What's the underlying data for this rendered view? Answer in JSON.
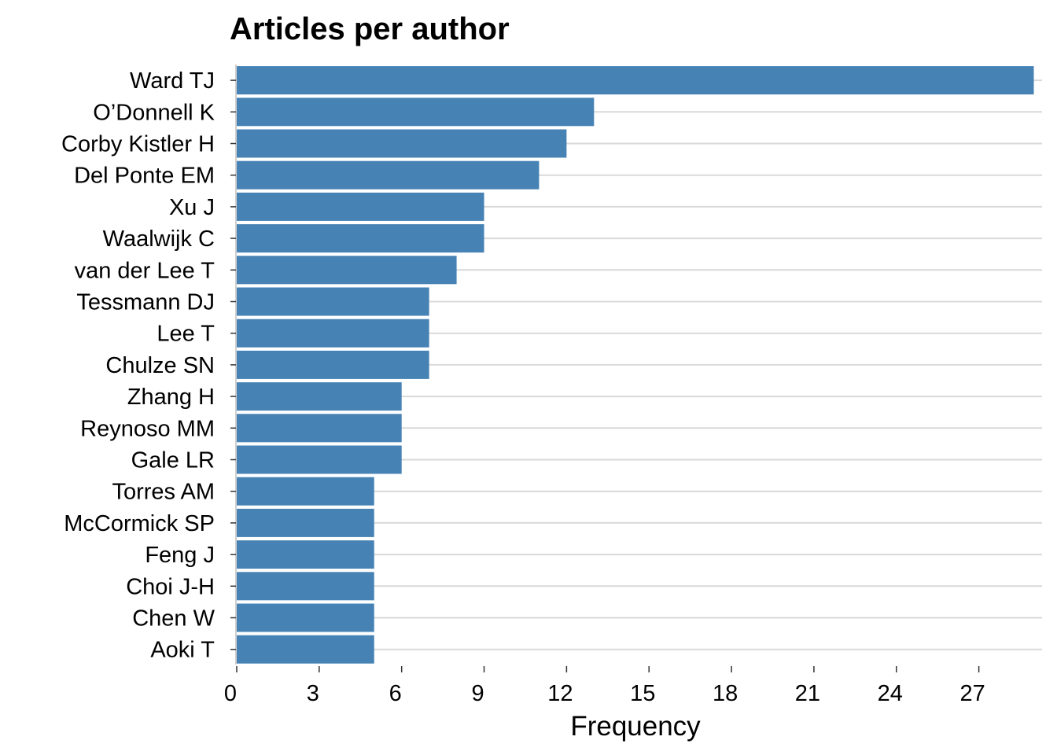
{
  "chart_data": {
    "type": "bar",
    "orientation": "horizontal",
    "title": "Articles per author",
    "xlabel": "Frequency",
    "ylabel": "",
    "categories": [
      "Ward TJ",
      "O’Donnell K",
      "Corby Kistler H",
      "Del Ponte EM",
      "Xu J",
      "Waalwijk C",
      "van der Lee T",
      "Tessmann DJ",
      "Lee T",
      "Chulze SN",
      "Zhang H",
      "Reynoso MM",
      "Gale LR",
      "Torres AM",
      "McCormick SP",
      "Feng J",
      "Choi J-H",
      "Chen W",
      "Aoki T"
    ],
    "values": [
      29,
      13,
      12,
      11,
      9,
      9,
      8,
      7,
      7,
      7,
      6,
      6,
      6,
      5,
      5,
      5,
      5,
      5,
      5
    ],
    "xticks": [
      "0",
      "3",
      "6",
      "9",
      "12",
      "15",
      "18",
      "21",
      "24",
      "27"
    ],
    "xlim": [
      0,
      29.3
    ],
    "grid": "horizontal",
    "legend": "none",
    "bar_color": "#4682B4"
  }
}
